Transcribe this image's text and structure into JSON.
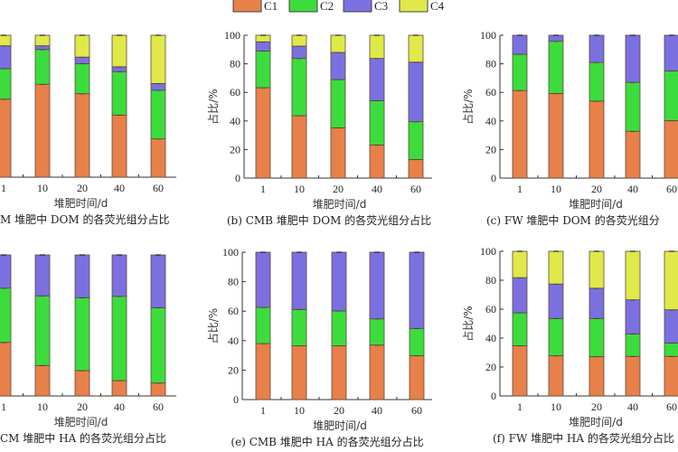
{
  "legend": {
    "items": [
      {
        "label": "C1",
        "color": "#e8804a"
      },
      {
        "label": "C2",
        "color": "#3ddc3d"
      },
      {
        "label": "C3",
        "color": "#7b70e0"
      },
      {
        "label": "C4",
        "color": "#e0e84a"
      }
    ]
  },
  "chart_data": [
    {
      "type": "bar",
      "stacked": true,
      "caption": "M 堆肥中 DOM 的各荧光组分占比",
      "xlabel": "堆肥时间/d",
      "ylabel": "",
      "ylim": [
        0,
        100
      ],
      "yticks": [],
      "categories": [
        "1",
        "10",
        "20",
        "40",
        "60"
      ],
      "series": [
        {
          "name": "C1",
          "values": [
            55,
            65.5,
            58.8,
            43.8,
            27
          ]
        },
        {
          "name": "C2",
          "values": [
            21.5,
            24.5,
            21.2,
            30.6,
            34.3
          ]
        },
        {
          "name": "C3",
          "values": [
            16.1,
            2.6,
            4.6,
            3.4,
            4.7
          ]
        },
        {
          "name": "C4",
          "values": [
            7.4,
            7.4,
            15.4,
            22.2,
            34
          ]
        }
      ]
    },
    {
      "type": "bar",
      "stacked": true,
      "caption": "(b) CMB 堆肥中 DOM 的各荧光组分占比",
      "xlabel": "堆肥时间/d",
      "ylabel": "占比/%",
      "ylim": [
        0,
        100
      ],
      "yticks": [
        "0",
        "20",
        "40",
        "60",
        "80",
        "100"
      ],
      "categories": [
        "1",
        "10",
        "20",
        "40",
        "60"
      ],
      "series": [
        {
          "name": "C1",
          "values": [
            63.3,
            43.7,
            35.2,
            23.2,
            13
          ]
        },
        {
          "name": "C2",
          "values": [
            25.7,
            40.1,
            33.8,
            31,
            26.5
          ]
        },
        {
          "name": "C3",
          "values": [
            6.4,
            8.6,
            19,
            29.6,
            41.7
          ]
        },
        {
          "name": "C4",
          "values": [
            4.6,
            7.6,
            12,
            16.2,
            18.8
          ]
        }
      ]
    },
    {
      "type": "bar",
      "stacked": true,
      "caption": "(c) FW 堆肥中 DOM 的各荧光组分",
      "xlabel": "堆肥时间/d",
      "ylabel": "占比/%",
      "ylim": [
        0,
        100
      ],
      "yticks": [
        "0",
        "20",
        "40",
        "60",
        "80",
        "100"
      ],
      "categories": [
        "1",
        "10",
        "20",
        "40",
        "60"
      ],
      "series": [
        {
          "name": "C1",
          "values": [
            61.3,
            59.2,
            53.9,
            32.8,
            40.2
          ]
        },
        {
          "name": "C2",
          "values": [
            25.4,
            36.6,
            27.1,
            34.2,
            34.8
          ]
        },
        {
          "name": "C3",
          "values": [
            13.3,
            4.2,
            19,
            33,
            25
          ]
        },
        {
          "name": "C4",
          "values": [
            0,
            0,
            0,
            0,
            0
          ]
        }
      ]
    },
    {
      "type": "bar",
      "stacked": true,
      "caption": "CM 堆肥中 HA 的各荧光组分占比",
      "xlabel": "堆肥时间/d",
      "ylabel": "",
      "ylim": [
        0,
        100
      ],
      "yticks": [],
      "categories": [
        "1",
        "10",
        "20",
        "40",
        "60"
      ],
      "series": [
        {
          "name": "C1",
          "values": [
            38,
            21.6,
            18,
            10.9,
            9.2
          ]
        },
        {
          "name": "C2",
          "values": [
            38.5,
            49.4,
            51.7,
            59.8,
            53.4
          ]
        },
        {
          "name": "C3",
          "values": [
            23.5,
            29,
            30.3,
            29.3,
            37.4
          ]
        },
        {
          "name": "C4",
          "values": [
            0,
            0,
            0,
            0,
            0
          ]
        }
      ]
    },
    {
      "type": "bar",
      "stacked": true,
      "caption": "(e) CMB 堆肥中 HA 的各荧光组分占比",
      "xlabel": "堆肥时间/d",
      "ylabel": "占比/%",
      "ylim": [
        0,
        100
      ],
      "yticks": [
        "0",
        "20",
        "40",
        "60",
        "80",
        "100"
      ],
      "categories": [
        "1",
        "10",
        "20",
        "40",
        "60"
      ],
      "series": [
        {
          "name": "C1",
          "values": [
            38,
            36.5,
            36.5,
            37,
            29.8
          ]
        },
        {
          "name": "C2",
          "values": [
            24.6,
            24.7,
            23.7,
            17.8,
            18.5
          ]
        },
        {
          "name": "C3",
          "values": [
            37.4,
            38.8,
            39.8,
            45.2,
            51.7
          ]
        },
        {
          "name": "C4",
          "values": [
            0,
            0,
            0,
            0,
            0
          ]
        }
      ]
    },
    {
      "type": "bar",
      "stacked": true,
      "caption": "(f) FW 堆肥中 HA 的各荧光组分占比",
      "xlabel": "堆肥时间/d",
      "ylabel": "占比/%",
      "ylim": [
        0,
        100
      ],
      "yticks": [
        "0",
        "20",
        "40",
        "60",
        "80",
        "100"
      ],
      "categories": [
        "1",
        "10",
        "20",
        "40",
        "60"
      ],
      "series": [
        {
          "name": "C1",
          "values": [
            34.7,
            27.8,
            27.2,
            27.4,
            27.4
          ]
        },
        {
          "name": "C2",
          "values": [
            22.8,
            25.8,
            26.4,
            15.5,
            9.2
          ]
        },
        {
          "name": "C3",
          "values": [
            24.3,
            23.8,
            20.9,
            23.6,
            23
          ]
        },
        {
          "name": "C4",
          "values": [
            18.2,
            22.6,
            25.5,
            33.5,
            40.4
          ]
        }
      ]
    }
  ]
}
